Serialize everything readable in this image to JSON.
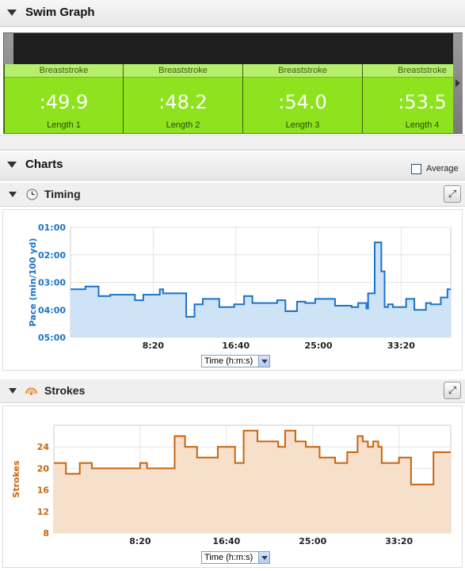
{
  "swim_graph": {
    "title": "Swim Graph",
    "lengths": [
      {
        "stroke": "Breaststroke",
        "time": ":49.9",
        "label": "Length 1"
      },
      {
        "stroke": "Breaststroke",
        "time": ":48.2",
        "label": "Length 2"
      },
      {
        "stroke": "Breaststroke",
        "time": ":54.0",
        "label": "Length 3"
      },
      {
        "stroke": "Breaststroke",
        "time": ":53.5",
        "label": "Length 4"
      }
    ]
  },
  "charts": {
    "title": "Charts",
    "average_label": "Average",
    "average_checked": false
  },
  "timing": {
    "title": "Timing",
    "time_select": "Time (h:m:s)",
    "color": "#1a73c9",
    "fill": "#cfe3f7"
  },
  "strokes": {
    "title": "Strokes",
    "time_select": "Time (h:m:s)",
    "color": "#c8650d",
    "fill": "#f6dfcb"
  },
  "chart_data": [
    {
      "type": "area",
      "ylabel": "Pace (min/100 yd)",
      "xlabel": "",
      "x_ticks": [
        "8:20",
        "16:40",
        "25:00",
        "33:20"
      ],
      "x_tick_seconds": [
        500,
        1000,
        1500,
        2000
      ],
      "xlim_seconds": [
        0,
        2300
      ],
      "y_ticks": [
        "01:00",
        "02:00",
        "03:00",
        "04:00",
        "05:00"
      ],
      "ylim_min_per_100yd": [
        1,
        5
      ],
      "y_inverted": true,
      "series": [
        {
          "x_seconds": [
            0,
            90,
            170,
            240,
            350,
            390,
            440,
            540,
            560,
            700,
            750,
            800,
            900,
            990,
            1050,
            1100,
            1250,
            1300,
            1370,
            1420,
            1480,
            1600,
            1700,
            1740,
            1790,
            1800,
            1840,
            1880,
            1900,
            1920,
            1950,
            2030,
            2080,
            2150,
            2180,
            2240,
            2280
          ],
          "values": [
            3.25,
            3.15,
            3.5,
            3.45,
            3.45,
            3.65,
            3.45,
            3.25,
            3.4,
            4.25,
            3.8,
            3.6,
            3.9,
            3.8,
            3.5,
            3.75,
            3.65,
            4.05,
            3.7,
            3.75,
            3.6,
            3.85,
            3.9,
            3.75,
            3.95,
            3.4,
            1.55,
            2.6,
            3.9,
            3.8,
            3.9,
            3.6,
            4.0,
            3.75,
            3.8,
            3.55,
            3.25
          ]
        }
      ]
    },
    {
      "type": "area",
      "ylabel": "Strokes",
      "xlabel": "",
      "x_ticks": [
        "8:20",
        "16:40",
        "25:00",
        "33:20"
      ],
      "x_tick_seconds": [
        500,
        1000,
        1500,
        2000
      ],
      "xlim_seconds": [
        0,
        2300
      ],
      "y_ticks": [
        "8",
        "12",
        "16",
        "20",
        "24"
      ],
      "ylim": [
        8,
        28
      ],
      "series": [
        {
          "x_seconds": [
            0,
            70,
            150,
            220,
            500,
            540,
            700,
            760,
            830,
            950,
            1050,
            1100,
            1180,
            1300,
            1340,
            1400,
            1460,
            1540,
            1580,
            1630,
            1700,
            1760,
            1790,
            1820,
            1850,
            1880,
            1900,
            2000,
            2070,
            2200
          ],
          "values": [
            21,
            19,
            21,
            20,
            21,
            20,
            26,
            24,
            22,
            24,
            21,
            27,
            25,
            24,
            27,
            25,
            24,
            22,
            22,
            21,
            23,
            26,
            25,
            24,
            25,
            24,
            21,
            22,
            17,
            23
          ]
        }
      ]
    }
  ]
}
